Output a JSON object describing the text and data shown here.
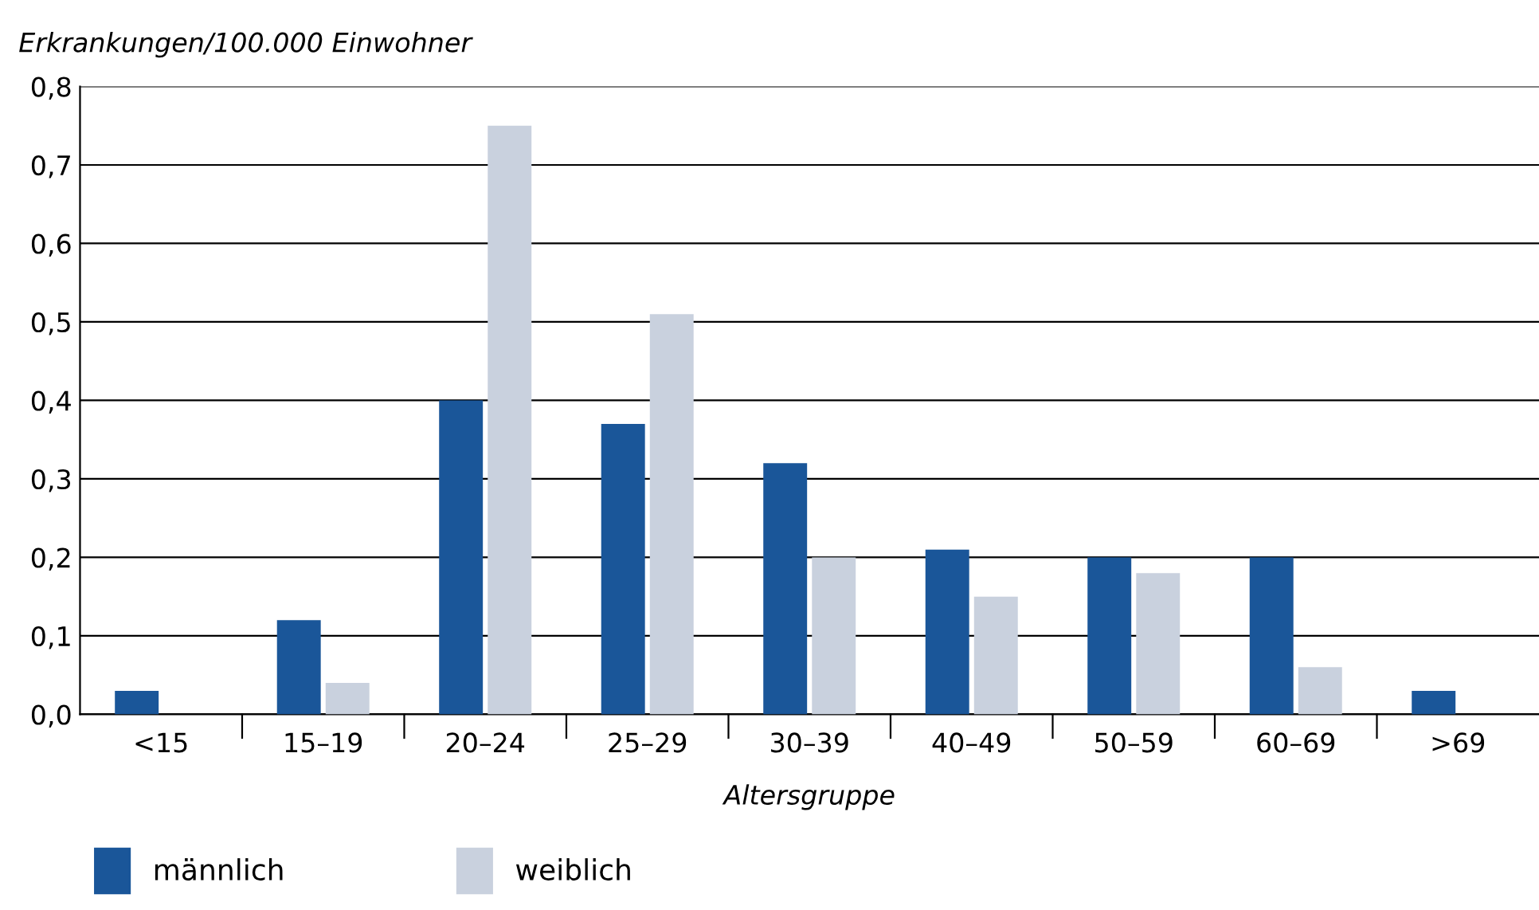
{
  "chart_data": {
    "type": "bar",
    "ylabel": "Erkrankungen/100.000 Einwohner",
    "xlabel": "Altersgruppe",
    "categories": [
      "<15",
      "15–19",
      "20–24",
      "25–29",
      "30–39",
      "40–49",
      "50–59",
      "60–69",
      ">69"
    ],
    "series": [
      {
        "name": "männlich",
        "color": "#1a5699",
        "values": [
          0.03,
          0.12,
          0.4,
          0.37,
          0.32,
          0.21,
          0.2,
          0.2,
          0.03
        ]
      },
      {
        "name": "weiblich",
        "color": "#c9d1de",
        "values": [
          null,
          0.04,
          0.75,
          0.51,
          0.2,
          0.15,
          0.18,
          0.06,
          null
        ]
      }
    ],
    "ylim": [
      0,
      0.8
    ],
    "yticks": [
      {
        "value": 0,
        "label": "0,0"
      },
      {
        "value": 0.1,
        "label": "0,1"
      },
      {
        "value": 0.2,
        "label": "0,2"
      },
      {
        "value": 0.3,
        "label": "0,3"
      },
      {
        "value": 0.4,
        "label": "0,4"
      },
      {
        "value": 0.5,
        "label": "0,5"
      },
      {
        "value": 0.6,
        "label": "0,6"
      },
      {
        "value": 0.7,
        "label": "0,7"
      },
      {
        "value": 0.8,
        "label": "0,8"
      }
    ],
    "grid": "y",
    "legend": "bottom left"
  }
}
